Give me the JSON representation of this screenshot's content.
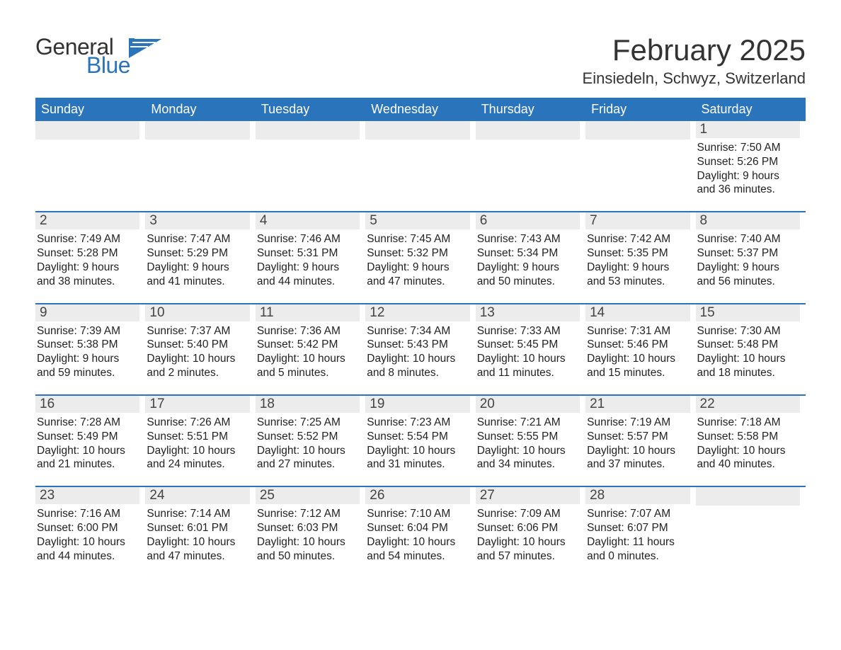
{
  "colors": {
    "brand_blue": "#2a74bb",
    "header_bg": "#2a74bb",
    "header_text": "#ffffff",
    "daynum_bg": "#ececec",
    "daynum_text": "#444444",
    "body_text": "#222222",
    "page_bg": "#ffffff",
    "logo_general": "#333333",
    "logo_blue": "#2a74bb",
    "rule": "#2a74bb"
  },
  "typography": {
    "month_title_size": 42,
    "location_size": 22,
    "day_header_size": 18,
    "day_num_size": 19,
    "body_size": 15.5,
    "font_family": "Segoe UI"
  },
  "logo": {
    "word1": "General",
    "word2": "Blue"
  },
  "title": {
    "month": "February 2025",
    "location": "Einsiedeln, Schwyz, Switzerland"
  },
  "day_names": [
    "Sunday",
    "Monday",
    "Tuesday",
    "Wednesday",
    "Thursday",
    "Friday",
    "Saturday"
  ],
  "labels": {
    "sunrise": "Sunrise: ",
    "sunset": "Sunset: ",
    "daylight_prefix": "Daylight: ",
    "and": " and ",
    "minutes_suffix": " minutes."
  },
  "weeks": [
    [
      null,
      null,
      null,
      null,
      null,
      null,
      {
        "n": "1",
        "sunrise": "7:50 AM",
        "sunset": "5:26 PM",
        "dl_h": "9 hours",
        "dl_m": "36"
      }
    ],
    [
      {
        "n": "2",
        "sunrise": "7:49 AM",
        "sunset": "5:28 PM",
        "dl_h": "9 hours",
        "dl_m": "38"
      },
      {
        "n": "3",
        "sunrise": "7:47 AM",
        "sunset": "5:29 PM",
        "dl_h": "9 hours",
        "dl_m": "41"
      },
      {
        "n": "4",
        "sunrise": "7:46 AM",
        "sunset": "5:31 PM",
        "dl_h": "9 hours",
        "dl_m": "44"
      },
      {
        "n": "5",
        "sunrise": "7:45 AM",
        "sunset": "5:32 PM",
        "dl_h": "9 hours",
        "dl_m": "47"
      },
      {
        "n": "6",
        "sunrise": "7:43 AM",
        "sunset": "5:34 PM",
        "dl_h": "9 hours",
        "dl_m": "50"
      },
      {
        "n": "7",
        "sunrise": "7:42 AM",
        "sunset": "5:35 PM",
        "dl_h": "9 hours",
        "dl_m": "53"
      },
      {
        "n": "8",
        "sunrise": "7:40 AM",
        "sunset": "5:37 PM",
        "dl_h": "9 hours",
        "dl_m": "56"
      }
    ],
    [
      {
        "n": "9",
        "sunrise": "7:39 AM",
        "sunset": "5:38 PM",
        "dl_h": "9 hours",
        "dl_m": "59"
      },
      {
        "n": "10",
        "sunrise": "7:37 AM",
        "sunset": "5:40 PM",
        "dl_h": "10 hours",
        "dl_m": "2"
      },
      {
        "n": "11",
        "sunrise": "7:36 AM",
        "sunset": "5:42 PM",
        "dl_h": "10 hours",
        "dl_m": "5"
      },
      {
        "n": "12",
        "sunrise": "7:34 AM",
        "sunset": "5:43 PM",
        "dl_h": "10 hours",
        "dl_m": "8"
      },
      {
        "n": "13",
        "sunrise": "7:33 AM",
        "sunset": "5:45 PM",
        "dl_h": "10 hours",
        "dl_m": "11"
      },
      {
        "n": "14",
        "sunrise": "7:31 AM",
        "sunset": "5:46 PM",
        "dl_h": "10 hours",
        "dl_m": "15"
      },
      {
        "n": "15",
        "sunrise": "7:30 AM",
        "sunset": "5:48 PM",
        "dl_h": "10 hours",
        "dl_m": "18"
      }
    ],
    [
      {
        "n": "16",
        "sunrise": "7:28 AM",
        "sunset": "5:49 PM",
        "dl_h": "10 hours",
        "dl_m": "21"
      },
      {
        "n": "17",
        "sunrise": "7:26 AM",
        "sunset": "5:51 PM",
        "dl_h": "10 hours",
        "dl_m": "24"
      },
      {
        "n": "18",
        "sunrise": "7:25 AM",
        "sunset": "5:52 PM",
        "dl_h": "10 hours",
        "dl_m": "27"
      },
      {
        "n": "19",
        "sunrise": "7:23 AM",
        "sunset": "5:54 PM",
        "dl_h": "10 hours",
        "dl_m": "31"
      },
      {
        "n": "20",
        "sunrise": "7:21 AM",
        "sunset": "5:55 PM",
        "dl_h": "10 hours",
        "dl_m": "34"
      },
      {
        "n": "21",
        "sunrise": "7:19 AM",
        "sunset": "5:57 PM",
        "dl_h": "10 hours",
        "dl_m": "37"
      },
      {
        "n": "22",
        "sunrise": "7:18 AM",
        "sunset": "5:58 PM",
        "dl_h": "10 hours",
        "dl_m": "40"
      }
    ],
    [
      {
        "n": "23",
        "sunrise": "7:16 AM",
        "sunset": "6:00 PM",
        "dl_h": "10 hours",
        "dl_m": "44"
      },
      {
        "n": "24",
        "sunrise": "7:14 AM",
        "sunset": "6:01 PM",
        "dl_h": "10 hours",
        "dl_m": "47"
      },
      {
        "n": "25",
        "sunrise": "7:12 AM",
        "sunset": "6:03 PM",
        "dl_h": "10 hours",
        "dl_m": "50"
      },
      {
        "n": "26",
        "sunrise": "7:10 AM",
        "sunset": "6:04 PM",
        "dl_h": "10 hours",
        "dl_m": "54"
      },
      {
        "n": "27",
        "sunrise": "7:09 AM",
        "sunset": "6:06 PM",
        "dl_h": "10 hours",
        "dl_m": "57"
      },
      {
        "n": "28",
        "sunrise": "7:07 AM",
        "sunset": "6:07 PM",
        "dl_h": "11 hours",
        "dl_m": "0"
      },
      null
    ]
  ]
}
